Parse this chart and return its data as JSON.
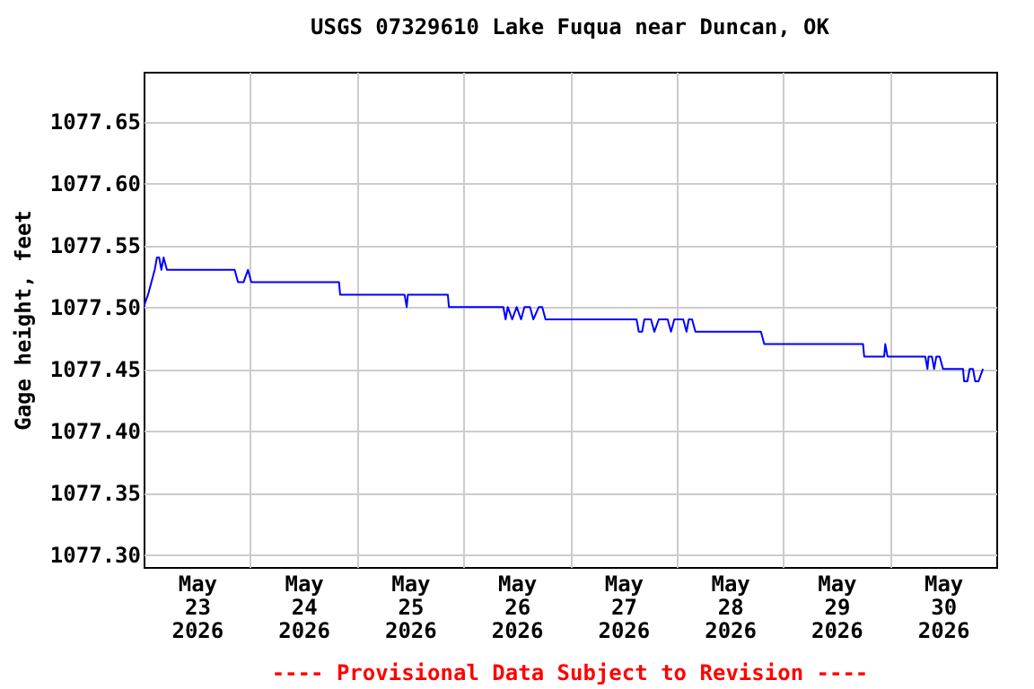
{
  "chart_data": {
    "type": "line",
    "title": "USGS 07329610 Lake Fuqua near Duncan, OK",
    "ylabel": "Gage height, feet",
    "annotations": [
      "---- Provisional Data Subject to Revision ----"
    ],
    "xlim": [
      "2026-05-23T00:00",
      "2026-05-31T00:00"
    ],
    "xticks": [
      {
        "value": "2026-05-23T12:00",
        "label": "May 23 2026"
      },
      {
        "value": "2026-05-24T00:00",
        "label": null
      },
      {
        "value": "2026-05-24T12:00",
        "label": "May 24 2026"
      },
      {
        "value": "2026-05-25T00:00",
        "label": null
      },
      {
        "value": "2026-05-25T12:00",
        "label": "May 25 2026"
      },
      {
        "value": "2026-05-26T00:00",
        "label": null
      },
      {
        "value": "2026-05-26T12:00",
        "label": "May 26 2026"
      },
      {
        "value": "2026-05-27T00:00",
        "label": null
      },
      {
        "value": "2026-05-27T12:00",
        "label": "May 27 2026"
      },
      {
        "value": "2026-05-28T00:00",
        "label": null
      },
      {
        "value": "2026-05-28T12:00",
        "label": "May 28 2026"
      },
      {
        "value": "2026-05-29T00:00",
        "label": null
      },
      {
        "value": "2026-05-29T12:00",
        "label": "May 29 2026"
      },
      {
        "value": "2026-05-30T00:00",
        "label": null
      },
      {
        "value": "2026-05-30T12:00",
        "label": "May 30 2026"
      }
    ],
    "ylim": [
      1077.29,
      1077.69
    ],
    "yticks": [
      {
        "value": 1077.3,
        "label": "1077.30"
      },
      {
        "value": 1077.35,
        "label": "1077.35"
      },
      {
        "value": 1077.4,
        "label": "1077.40"
      },
      {
        "value": 1077.45,
        "label": "1077.45"
      },
      {
        "value": 1077.5,
        "label": "1077.50"
      },
      {
        "value": 1077.55,
        "label": "1077.55"
      },
      {
        "value": 1077.6,
        "label": "1077.60"
      },
      {
        "value": 1077.65,
        "label": "1077.65"
      }
    ],
    "grid": true,
    "x": [
      "2026-05-23T00:00",
      "2026-05-23T01:00",
      "2026-05-23T02:30",
      "2026-05-23T03:00",
      "2026-05-23T03:30",
      "2026-05-23T04:00",
      "2026-05-23T04:30",
      "2026-05-23T05:15",
      "2026-05-23T20:30",
      "2026-05-23T21:15",
      "2026-05-23T22:30",
      "2026-05-23T23:30",
      "2026-05-24T00:15",
      "2026-05-24T20:00",
      "2026-05-24T20:15",
      "2026-05-25T10:45",
      "2026-05-25T11:15",
      "2026-05-25T11:30",
      "2026-05-25T20:30",
      "2026-05-25T20:45",
      "2026-05-26T09:00",
      "2026-05-26T09:30",
      "2026-05-26T10:00",
      "2026-05-26T11:00",
      "2026-05-26T12:00",
      "2026-05-26T13:00",
      "2026-05-26T13:45",
      "2026-05-26T15:00",
      "2026-05-26T15:45",
      "2026-05-26T17:00",
      "2026-05-26T17:45",
      "2026-05-26T18:30",
      "2026-05-27T15:00",
      "2026-05-27T15:30",
      "2026-05-27T16:15",
      "2026-05-27T16:45",
      "2026-05-27T18:15",
      "2026-05-27T19:00",
      "2026-05-27T20:00",
      "2026-05-27T22:00",
      "2026-05-27T22:45",
      "2026-05-27T23:30",
      "2026-05-28T01:30",
      "2026-05-28T02:15",
      "2026-05-28T02:45",
      "2026-05-28T03:30",
      "2026-05-28T04:15",
      "2026-05-28T19:00",
      "2026-05-28T19:45",
      "2026-05-29T18:00",
      "2026-05-29T18:15",
      "2026-05-29T22:45",
      "2026-05-29T23:00",
      "2026-05-29T23:30",
      "2026-05-30T08:00",
      "2026-05-30T08:30",
      "2026-05-30T08:45",
      "2026-05-30T09:30",
      "2026-05-30T10:00",
      "2026-05-30T10:30",
      "2026-05-30T11:15",
      "2026-05-30T12:00",
      "2026-05-30T16:30",
      "2026-05-30T16:45",
      "2026-05-30T17:30",
      "2026-05-30T18:00",
      "2026-05-30T18:45",
      "2026-05-30T19:15",
      "2026-05-30T20:00",
      "2026-05-30T21:00"
    ],
    "series": [
      {
        "color": "#0000ff",
        "values": [
          1077.5,
          1077.51,
          1077.53,
          1077.54,
          1077.54,
          1077.53,
          1077.54,
          1077.53,
          1077.53,
          1077.52,
          1077.52,
          1077.53,
          1077.52,
          1077.52,
          1077.51,
          1077.51,
          1077.5,
          1077.51,
          1077.51,
          1077.5,
          1077.5,
          1077.49,
          1077.5,
          1077.49,
          1077.5,
          1077.49,
          1077.5,
          1077.5,
          1077.49,
          1077.5,
          1077.5,
          1077.49,
          1077.49,
          1077.48,
          1077.48,
          1077.49,
          1077.49,
          1077.48,
          1077.49,
          1077.49,
          1077.48,
          1077.49,
          1077.49,
          1077.48,
          1077.49,
          1077.49,
          1077.48,
          1077.48,
          1077.47,
          1077.47,
          1077.46,
          1077.46,
          1077.47,
          1077.46,
          1077.46,
          1077.45,
          1077.46,
          1077.46,
          1077.45,
          1077.46,
          1077.46,
          1077.45,
          1077.45,
          1077.44,
          1077.44,
          1077.45,
          1077.45,
          1077.44,
          1077.44,
          1077.45
        ]
      }
    ]
  }
}
